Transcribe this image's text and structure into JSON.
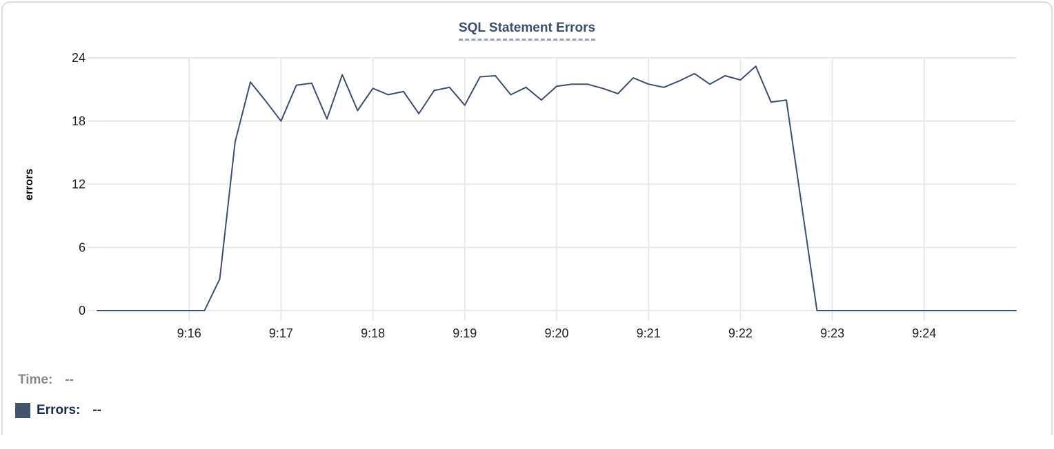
{
  "panel": {
    "title": "SQL Statement Errors"
  },
  "tooltip": {
    "time_label": "Time:",
    "time_value": "--",
    "errors_label": "Errors:",
    "errors_value": "--"
  },
  "colors": {
    "line": "#3e4d6b",
    "swatch": "#44536e",
    "title": "#3d4d6e",
    "title_underline": "#97a1b5",
    "grid": "#e8e8e8",
    "tick_label": "#1d1d1d",
    "axis_label": "#000000",
    "time_label": "#878787",
    "errors_label": "#1c2a4e",
    "card_border": "#dedee1"
  },
  "chart_data": {
    "type": "line",
    "title": "SQL Statement Errors",
    "xlabel": "",
    "ylabel": "errors",
    "ylim": [
      0,
      24
    ],
    "y_ticks": [
      0,
      6,
      12,
      18,
      24
    ],
    "x_tick_labels": [
      "9:16",
      "9:17",
      "9:18",
      "9:19",
      "9:20",
      "9:21",
      "9:22",
      "9:23",
      "9:24"
    ],
    "x_range": [
      "9:15:00",
      "9:25:00"
    ],
    "interval_seconds": 10,
    "grid": true,
    "legend_position": "bottom-left",
    "series_name": "Errors",
    "times": [
      "9:15:00",
      "9:15:10",
      "9:15:20",
      "9:15:30",
      "9:15:40",
      "9:15:50",
      "9:16:00",
      "9:16:10",
      "9:16:20",
      "9:16:30",
      "9:16:40",
      "9:16:50",
      "9:17:00",
      "9:17:10",
      "9:17:20",
      "9:17:30",
      "9:17:40",
      "9:17:50",
      "9:18:00",
      "9:18:10",
      "9:18:20",
      "9:18:30",
      "9:18:40",
      "9:18:50",
      "9:19:00",
      "9:19:10",
      "9:19:20",
      "9:19:30",
      "9:19:40",
      "9:19:50",
      "9:20:00",
      "9:20:10",
      "9:20:20",
      "9:20:30",
      "9:20:40",
      "9:20:50",
      "9:21:00",
      "9:21:10",
      "9:21:20",
      "9:21:30",
      "9:21:40",
      "9:21:50",
      "9:22:00",
      "9:22:10",
      "9:22:20",
      "9:22:30",
      "9:22:40",
      "9:22:50",
      "9:23:00",
      "9:23:10",
      "9:23:20",
      "9:23:30",
      "9:23:40",
      "9:23:50",
      "9:24:00",
      "9:24:10",
      "9:24:20",
      "9:24:30",
      "9:24:40",
      "9:24:50",
      "9:25:00"
    ],
    "values": [
      0,
      0,
      0,
      0,
      0,
      0,
      0,
      0,
      3,
      16,
      21.7,
      19.9,
      18,
      21.4,
      21.6,
      18.2,
      22.4,
      19,
      21.1,
      20.5,
      20.8,
      18.7,
      20.9,
      21.2,
      19.5,
      22.2,
      22.3,
      20.5,
      21.2,
      20,
      21.3,
      21.5,
      21.5,
      21.1,
      20.6,
      22.1,
      21.5,
      21.2,
      21.8,
      22.5,
      21.5,
      22.3,
      21.9,
      23.2,
      19.8,
      20,
      10,
      0,
      0,
      0,
      0,
      0,
      0,
      0,
      0,
      0,
      0,
      0,
      0,
      0,
      0
    ]
  }
}
